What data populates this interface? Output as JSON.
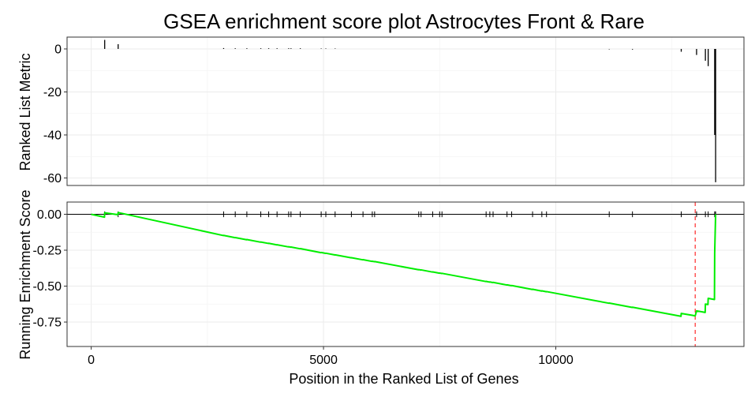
{
  "chart_data": {
    "type": "line",
    "title": "GSEA enrichment score plot Astrocytes Front & Rare",
    "xlabel": "Position in the Ranked List of Genes",
    "x_ticks": [
      0,
      5000,
      10000
    ],
    "xlim": [
      -520,
      14050
    ],
    "grid": true,
    "panels": [
      {
        "name": "ranked-list-metric",
        "type": "bar",
        "ylabel": "Ranked List Metric",
        "ylim": [
          -63.5,
          5.5
        ],
        "y_ticks": [
          0,
          -20,
          -40,
          -60
        ],
        "bars": [
          {
            "x": 290,
            "y": 4.2
          },
          {
            "x": 580,
            "y": 2.2
          },
          {
            "x": 2850,
            "y": 0.4
          },
          {
            "x": 3100,
            "y": 0.3
          },
          {
            "x": 3350,
            "y": 0.3
          },
          {
            "x": 3650,
            "y": 0.3
          },
          {
            "x": 3820,
            "y": 0.3
          },
          {
            "x": 4000,
            "y": 0.3
          },
          {
            "x": 4250,
            "y": 0.3
          },
          {
            "x": 4300,
            "y": 0.3
          },
          {
            "x": 4500,
            "y": 0.3
          },
          {
            "x": 4950,
            "y": 0.2
          },
          {
            "x": 5050,
            "y": 0.2
          },
          {
            "x": 5250,
            "y": 0.2
          },
          {
            "x": 11150,
            "y": -0.2
          },
          {
            "x": 11650,
            "y": -0.3
          },
          {
            "x": 12700,
            "y": -1.3
          },
          {
            "x": 13030,
            "y": -2.8
          },
          {
            "x": 13220,
            "y": -5.5
          },
          {
            "x": 13280,
            "y": -8.0
          },
          {
            "x": 13420,
            "y": -40.0
          },
          {
            "x": 13440,
            "y": -62.0
          }
        ]
      },
      {
        "name": "running-enrichment-score",
        "type": "line",
        "ylabel": "Running Enrichment Score",
        "ylim": [
          -0.92,
          0.085
        ],
        "y_ticks": [
          0.0,
          -0.25,
          -0.5,
          -0.75
        ],
        "y_tick_labels": [
          "0.00",
          "-0.25",
          "-0.50",
          "-0.75"
        ],
        "line_color": "#00ee00",
        "peak_line_color": "#ff0000",
        "peak_x": 13000,
        "hits": [
          290,
          580,
          2850,
          3100,
          3350,
          3650,
          3820,
          4000,
          4250,
          4300,
          4500,
          4950,
          5050,
          5250,
          5600,
          5850,
          6050,
          6100,
          7050,
          7100,
          7350,
          7500,
          7550,
          8500,
          8580,
          8650,
          8950,
          9050,
          9500,
          9700,
          9800,
          11150,
          11650,
          12700,
          13030,
          13220,
          13280,
          13420,
          13440
        ],
        "hit_height": 0.04,
        "es_points": [
          [
            0,
            0.0
          ],
          [
            285,
            -0.02
          ],
          [
            290,
            0.01
          ],
          [
            575,
            -0.003
          ],
          [
            580,
            0.012
          ],
          [
            2845,
            -0.148
          ],
          [
            2850,
            -0.147
          ],
          [
            3095,
            -0.163
          ],
          [
            3100,
            -0.162
          ],
          [
            3345,
            -0.177
          ],
          [
            3350,
            -0.176
          ],
          [
            3645,
            -0.194
          ],
          [
            3650,
            -0.193
          ],
          [
            3815,
            -0.203
          ],
          [
            3820,
            -0.202
          ],
          [
            3995,
            -0.213
          ],
          [
            4000,
            -0.212
          ],
          [
            4245,
            -0.227
          ],
          [
            4250,
            -0.226
          ],
          [
            4295,
            -0.229
          ],
          [
            4300,
            -0.228
          ],
          [
            4495,
            -0.24
          ],
          [
            4500,
            -0.239
          ],
          [
            4945,
            -0.267
          ],
          [
            4950,
            -0.266
          ],
          [
            5045,
            -0.272
          ],
          [
            5050,
            -0.271
          ],
          [
            5245,
            -0.283
          ],
          [
            5250,
            -0.282
          ],
          [
            5595,
            -0.303
          ],
          [
            5600,
            -0.302
          ],
          [
            5845,
            -0.317
          ],
          [
            5850,
            -0.316
          ],
          [
            6045,
            -0.328
          ],
          [
            6050,
            -0.327
          ],
          [
            6095,
            -0.33
          ],
          [
            6100,
            -0.329
          ],
          [
            7045,
            -0.386
          ],
          [
            7050,
            -0.385
          ],
          [
            7095,
            -0.388
          ],
          [
            7100,
            -0.387
          ],
          [
            7345,
            -0.402
          ],
          [
            7350,
            -0.401
          ],
          [
            7495,
            -0.41
          ],
          [
            7500,
            -0.409
          ],
          [
            7545,
            -0.412
          ],
          [
            7550,
            -0.411
          ],
          [
            8495,
            -0.468
          ],
          [
            8500,
            -0.467
          ],
          [
            8575,
            -0.472
          ],
          [
            8580,
            -0.471
          ],
          [
            8645,
            -0.475
          ],
          [
            8650,
            -0.474
          ],
          [
            8945,
            -0.492
          ],
          [
            8950,
            -0.491
          ],
          [
            9045,
            -0.497
          ],
          [
            9050,
            -0.496
          ],
          [
            9495,
            -0.523
          ],
          [
            9500,
            -0.522
          ],
          [
            9695,
            -0.534
          ],
          [
            9700,
            -0.533
          ],
          [
            9795,
            -0.539
          ],
          [
            9800,
            -0.538
          ],
          [
            11145,
            -0.619
          ],
          [
            11150,
            -0.618
          ],
          [
            11645,
            -0.648
          ],
          [
            11650,
            -0.647
          ],
          [
            12695,
            -0.71
          ],
          [
            12700,
            -0.69
          ],
          [
            12950,
            -0.704
          ],
          [
            13000,
            -0.707
          ],
          [
            13030,
            -0.672
          ],
          [
            13215,
            -0.683
          ],
          [
            13220,
            -0.625
          ],
          [
            13275,
            -0.628
          ],
          [
            13280,
            -0.585
          ],
          [
            13415,
            -0.593
          ],
          [
            13420,
            -0.27
          ],
          [
            13440,
            0.0
          ]
        ]
      }
    ]
  }
}
